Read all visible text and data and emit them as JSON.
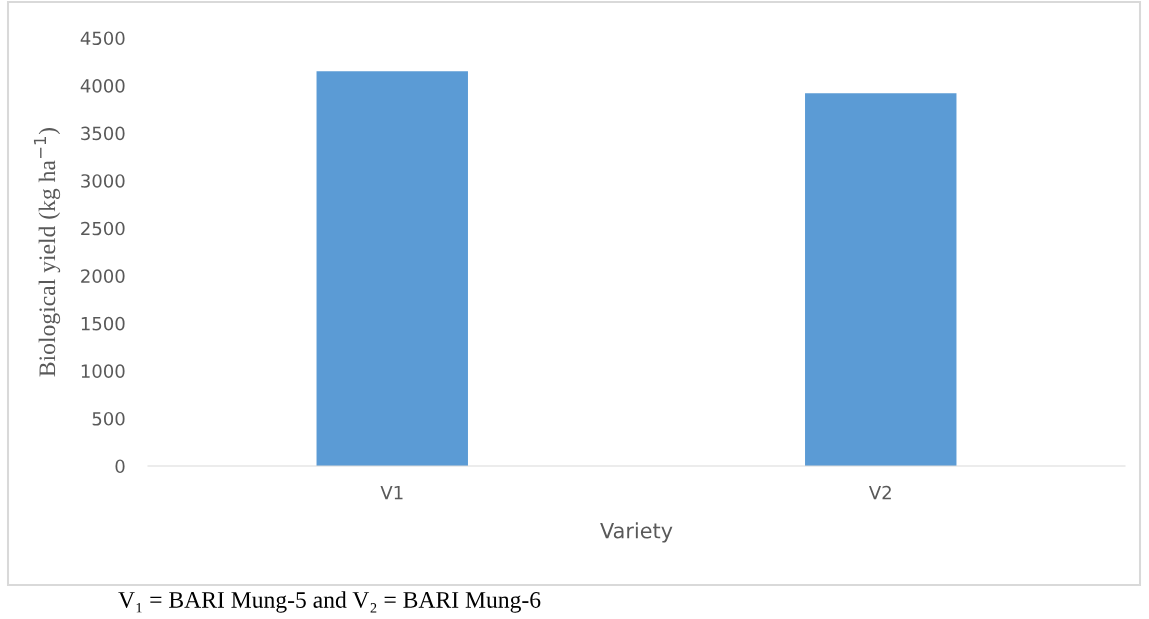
{
  "chart_data": {
    "type": "bar",
    "categories": [
      "V1",
      "V2"
    ],
    "values": [
      4150,
      3920
    ],
    "color": "#5b9bd5",
    "xlabel": "Variety",
    "ylabel": "Biological yield (kg ha$^{−1}$)",
    "ylim": [
      0,
      4500
    ],
    "yticks": [
      0,
      500,
      1000,
      1500,
      2000,
      2500,
      3000,
      3500,
      4000,
      4500
    ],
    "grid": false,
    "annotations": [
      "V₁ = BARI Mung-5 and V₂ = BARI Mung-6"
    ]
  }
}
